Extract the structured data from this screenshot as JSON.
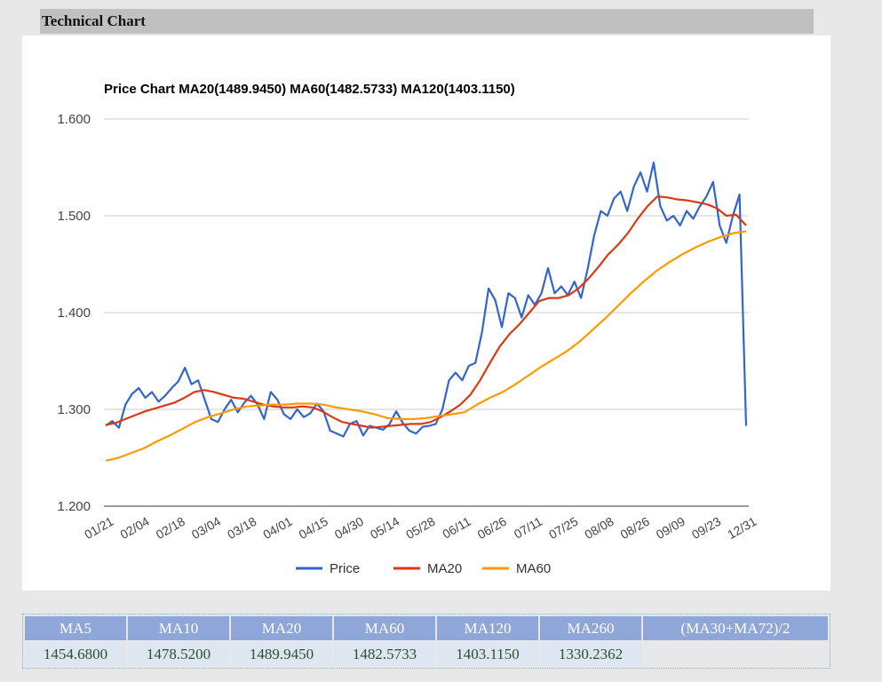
{
  "section_title": "Technical Chart",
  "chart_data": {
    "type": "line",
    "title": "Price Chart MA20(1489.9450) MA60(1482.5733) MA120(1403.1150)",
    "ylim": [
      1.2,
      1.6
    ],
    "yticks": [
      "1.600",
      "1.500",
      "1.400",
      "1.300",
      "1.200"
    ],
    "ytick_values": [
      1.6,
      1.5,
      1.4,
      1.3,
      1.2
    ],
    "x_tick_labels": [
      "01/21",
      "02/04",
      "02/18",
      "03/04",
      "03/18",
      "04/01",
      "04/15",
      "04/30",
      "05/14",
      "05/28",
      "06/11",
      "06/26",
      "07/11",
      "07/25",
      "08/08",
      "08/26",
      "09/09",
      "09/23",
      "12/31"
    ],
    "grid": true,
    "legend_position": "bottom",
    "series": [
      {
        "name": "Price",
        "color": "#3366cc",
        "values": [
          1.283,
          1.288,
          1.281,
          1.305,
          1.316,
          1.322,
          1.312,
          1.318,
          1.308,
          1.314,
          1.322,
          1.329,
          1.343,
          1.326,
          1.33,
          1.31,
          1.29,
          1.287,
          1.3,
          1.31,
          1.297,
          1.307,
          1.314,
          1.305,
          1.29,
          1.318,
          1.31,
          1.295,
          1.29,
          1.3,
          1.292,
          1.296,
          1.306,
          1.298,
          1.278,
          1.275,
          1.272,
          1.285,
          1.288,
          1.273,
          1.283,
          1.281,
          1.279,
          1.285,
          1.298,
          1.286,
          1.278,
          1.275,
          1.282,
          1.283,
          1.285,
          1.3,
          1.33,
          1.338,
          1.33,
          1.345,
          1.348,
          1.38,
          1.425,
          1.413,
          1.385,
          1.42,
          1.415,
          1.395,
          1.418,
          1.408,
          1.42,
          1.446,
          1.42,
          1.427,
          1.418,
          1.432,
          1.415,
          1.445,
          1.48,
          1.505,
          1.5,
          1.518,
          1.525,
          1.505,
          1.53,
          1.545,
          1.525,
          1.555,
          1.51,
          1.495,
          1.5,
          1.49,
          1.505,
          1.497,
          1.51,
          1.52,
          1.535,
          1.49,
          1.472,
          1.5,
          1.522,
          1.283
        ]
      },
      {
        "name": "MA20",
        "color": "#dc3912",
        "values": [
          1.284,
          1.286,
          1.29,
          1.294,
          1.298,
          1.301,
          1.304,
          1.307,
          1.312,
          1.318,
          1.32,
          1.318,
          1.315,
          1.312,
          1.311,
          1.308,
          1.305,
          1.303,
          1.302,
          1.302,
          1.303,
          1.302,
          1.298,
          1.292,
          1.287,
          1.285,
          1.283,
          1.281,
          1.282,
          1.283,
          1.284,
          1.285,
          1.285,
          1.287,
          1.292,
          1.298,
          1.305,
          1.315,
          1.33,
          1.348,
          1.365,
          1.378,
          1.388,
          1.4,
          1.412,
          1.415,
          1.415,
          1.418,
          1.425,
          1.435,
          1.447,
          1.46,
          1.47,
          1.482,
          1.497,
          1.51,
          1.52,
          1.519,
          1.517,
          1.516,
          1.514,
          1.512,
          1.508,
          1.5,
          1.501,
          1.49
        ]
      },
      {
        "name": "MA60",
        "color": "#ff9900",
        "values": [
          1.247,
          1.25,
          1.255,
          1.26,
          1.267,
          1.273,
          1.28,
          1.287,
          1.292,
          1.296,
          1.3,
          1.303,
          1.304,
          1.305,
          1.305,
          1.306,
          1.306,
          1.305,
          1.302,
          1.3,
          1.298,
          1.295,
          1.291,
          1.29,
          1.29,
          1.291,
          1.293,
          1.295,
          1.297,
          1.305,
          1.312,
          1.318,
          1.326,
          1.335,
          1.344,
          1.352,
          1.36,
          1.37,
          1.382,
          1.394,
          1.407,
          1.42,
          1.432,
          1.443,
          1.452,
          1.46,
          1.467,
          1.473,
          1.478,
          1.482,
          1.484
        ]
      }
    ]
  },
  "ma_table": {
    "headers": [
      "MA5",
      "MA10",
      "MA20",
      "MA60",
      "MA120",
      "MA260",
      "(MA30+MA72)/2"
    ],
    "values": [
      "1454.6800",
      "1478.5200",
      "1489.9450",
      "1482.5733",
      "1403.1150",
      "1330.2362",
      ""
    ]
  }
}
